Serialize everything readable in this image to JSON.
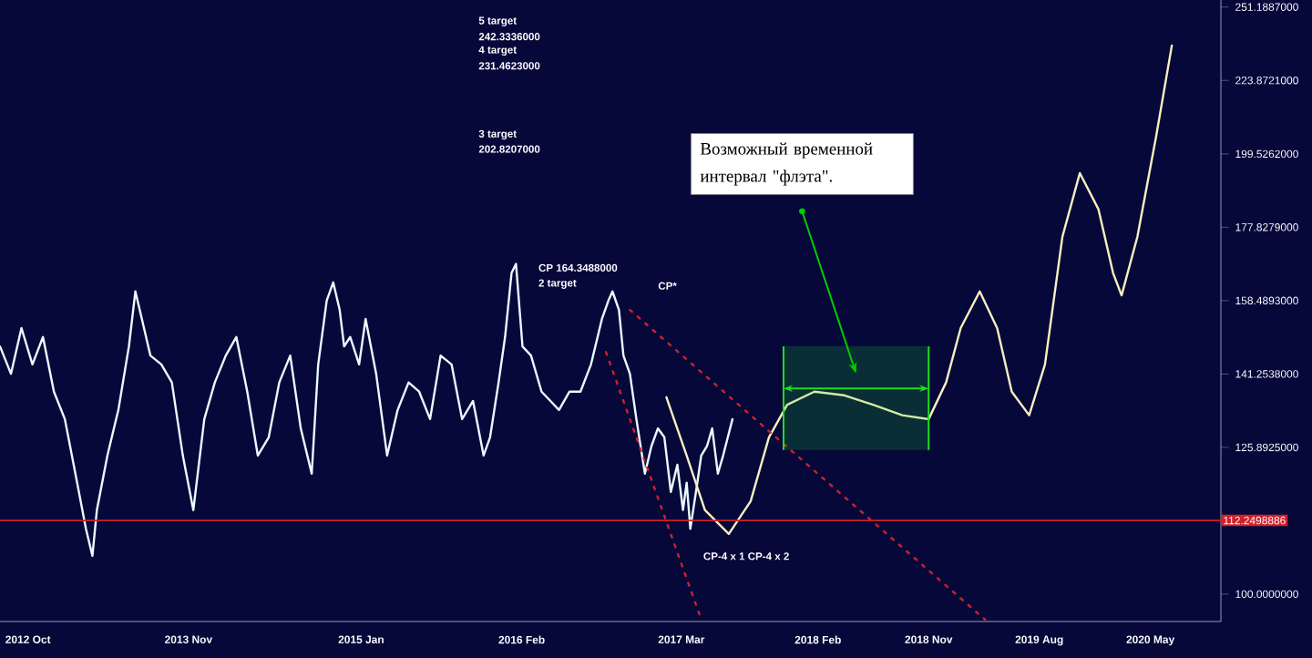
{
  "chart_data": {
    "type": "line",
    "log": "y",
    "xlim": [
      "2012-07-24",
      "2020-10-22"
    ],
    "ylim": [
      95.8,
      254.0
    ],
    "xticks": [
      {
        "value": "2012-10-01",
        "label": "2012 Oct"
      },
      {
        "value": "2013-11-01",
        "label": "2013 Nov"
      },
      {
        "value": "2015-01-01",
        "label": "2015 Jan"
      },
      {
        "value": "2016-02-01",
        "label": "2016 Feb"
      },
      {
        "value": "2017-03-01",
        "label": "2017 Mar"
      },
      {
        "value": "2018-02-01",
        "label": "2018 Feb"
      },
      {
        "value": "2018-11-01",
        "label": "2018 Nov"
      },
      {
        "value": "2019-08-01",
        "label": "2019 Aug"
      },
      {
        "value": "2020-05-01",
        "label": "2020 May"
      }
    ],
    "yticks": [
      {
        "value": 100,
        "label": "100.0000000"
      },
      {
        "value": 125.8925,
        "label": "125.8925000"
      },
      {
        "value": 141.2538,
        "label": "141.2538000"
      },
      {
        "value": 158.4893,
        "label": "158.4893000"
      },
      {
        "value": 177.8279,
        "label": "177.8279000"
      },
      {
        "value": 199.5262,
        "label": "199.5262000"
      },
      {
        "value": 223.8721,
        "label": "223.8721000"
      },
      {
        "value": 251.1887,
        "label": "251.1887000"
      }
    ],
    "series": [
      {
        "color": "#e8fbff",
        "x": [
          "2012-07-24",
          "2012-08-20",
          "2012-09-15",
          "2012-10-12",
          "2012-11-07",
          "2012-12-04",
          "2012-12-31",
          "2013-01-26",
          "2013-02-21",
          "2013-03-09",
          "2013-03-20",
          "2013-04-15",
          "2013-05-12",
          "2013-06-07",
          "2013-06-23",
          "2013-07-09",
          "2013-07-30",
          "2013-08-26",
          "2013-09-21",
          "2013-10-18",
          "2013-11-13",
          "2013-12-10",
          "2014-01-05",
          "2014-02-01",
          "2014-02-27",
          "2014-03-26",
          "2014-04-21",
          "2014-05-18",
          "2014-06-13",
          "2014-07-10",
          "2014-08-05",
          "2014-09-01",
          "2014-09-17",
          "2014-10-08",
          "2014-10-24",
          "2014-11-09",
          "2014-11-20",
          "2014-12-05",
          "2014-12-27",
          "2015-01-12",
          "2015-02-07",
          "2015-03-06",
          "2015-04-01",
          "2015-04-28",
          "2015-05-24",
          "2015-06-20",
          "2015-07-16",
          "2015-08-12",
          "2015-09-07",
          "2015-10-04",
          "2015-10-30",
          "2015-11-15",
          "2015-12-06",
          "2015-12-22",
          "2016-01-07",
          "2016-01-18",
          "2016-02-03",
          "2016-02-24",
          "2016-03-21",
          "2016-04-12",
          "2016-05-03",
          "2016-05-29",
          "2016-06-25",
          "2016-07-21",
          "2016-08-17",
          "2016-09-02",
          "2016-09-12",
          "2016-09-28",
          "2016-10-09",
          "2016-10-25",
          "2016-11-10",
          "2016-12-01",
          "2016-12-17",
          "2017-01-02",
          "2017-01-18",
          "2017-02-03",
          "2017-02-19",
          "2017-03-05",
          "2017-03-14",
          "2017-03-23",
          "2017-04-06",
          "2017-04-19",
          "2017-05-03",
          "2017-05-16",
          "2017-05-30",
          "2017-06-12",
          "2017-07-05"
        ],
        "values": [
          147.5,
          141.3,
          151.8,
          143.4,
          149.7,
          137.4,
          131.6,
          120.8,
          110.8,
          106.2,
          114.1,
          124.3,
          133.5,
          147.5,
          160.8,
          154.0,
          145.4,
          143.4,
          139.4,
          124.3,
          114.1,
          131.6,
          139.4,
          145.4,
          149.7,
          137.4,
          124.3,
          127.9,
          139.4,
          145.4,
          129.7,
          120.8,
          143.4,
          158.5,
          163.1,
          156.2,
          147.5,
          149.7,
          143.4,
          154.0,
          141.3,
          124.3,
          133.5,
          139.4,
          137.4,
          131.6,
          145.4,
          143.4,
          131.6,
          135.4,
          124.3,
          127.9,
          139.4,
          149.7,
          165.5,
          167.9,
          147.5,
          145.4,
          137.4,
          135.4,
          133.5,
          137.4,
          137.4,
          143.4,
          154.0,
          158.5,
          160.8,
          156.2,
          145.4,
          141.3,
          131.6,
          120.8,
          126.1,
          129.7,
          127.9,
          117.4,
          122.5,
          114.1,
          119.1,
          110.8,
          117.4,
          124.3,
          126.1,
          129.7,
          120.8,
          124.3,
          131.6
        ]
      },
      {
        "color": "#fbeec0",
        "x": [
          "2017-01-23",
          "2017-03-14",
          "2017-04-28",
          "2017-06-26",
          "2017-08-19",
          "2017-10-03",
          "2017-11-17",
          "2018-01-23",
          "2018-04-07",
          "2018-06-17",
          "2018-08-28",
          "2018-11-01",
          "2018-12-14",
          "2019-01-19",
          "2019-03-07",
          "2019-04-19",
          "2019-05-25",
          "2019-07-07",
          "2019-08-15",
          "2019-09-27",
          "2019-11-09",
          "2019-12-25",
          "2020-01-30",
          "2020-02-20",
          "2020-03-30",
          "2020-05-15",
          "2020-06-23"
        ],
        "values": [
          136.2,
          124.3,
          114.1,
          109.9,
          115.7,
          127.9,
          134.6,
          137.4,
          136.6,
          134.6,
          132.4,
          131.6,
          139.4,
          151.8,
          160.8,
          151.8,
          137.4,
          132.4,
          143.4,
          175.2,
          193.6,
          182.9,
          165.5,
          159.8,
          175.2,
          204.9,
          236.5
        ]
      },
      {
        "color": "#d0202a",
        "line_style": "dotted",
        "x": [
          "2016-10-25",
          "2019-03-20"
        ],
        "values": [
          156.2,
          96.1
        ]
      },
      {
        "color": "#d0202a",
        "line_style": "dotted",
        "x": [
          "2016-08-27",
          "2017-04-19"
        ],
        "values": [
          146.2,
          96.1
        ]
      }
    ],
    "ref_lines": [
      {
        "axis": "y",
        "value": 112.2498886,
        "label": "112.2498886",
        "color": "#d0202a"
      }
    ],
    "bands": [
      {
        "axis": "x",
        "from": "2017-11-08",
        "to": "2018-11-01",
        "color": "#22dd22"
      }
    ],
    "annotations": [
      "5 target",
      "242.3336000",
      "4 target",
      "231.4623000",
      "3 target",
      "202.8207000",
      "CP  164.3488000",
      "2 target",
      "CP*",
      "CP-4 x 1 CP-4 x 2",
      "Возможный временной интервал \"флэта\"."
    ]
  }
}
